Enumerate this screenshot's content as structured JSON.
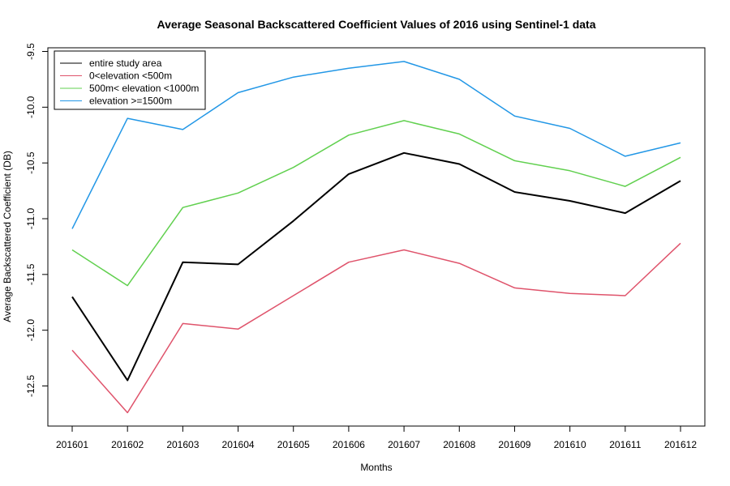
{
  "chart_data": {
    "type": "line",
    "title": "Average Seasonal Backscattered Coefficient Values of 2016 using Sentinel-1 data",
    "xlabel": "Months",
    "ylabel": "Average Backscattered Coefficient (DB)",
    "categories": [
      "201601",
      "201602",
      "201603",
      "201604",
      "201605",
      "201606",
      "201607",
      "201608",
      "201609",
      "201610",
      "201611",
      "201612"
    ],
    "ylim": [
      -12.8,
      -9.5
    ],
    "yticks": [
      -9.5,
      -10.0,
      -10.5,
      -11.0,
      -11.5,
      -12.0,
      -12.5
    ],
    "ytick_labels": [
      "-9.5",
      "-10.0",
      "-10.5",
      "-11.0",
      "-11.5",
      "-12.0",
      "-12.5"
    ],
    "legend_position": "top-left",
    "series": [
      {
        "name": "entire study area",
        "color": "#000000",
        "values": [
          -11.7,
          -12.45,
          -11.39,
          -11.41,
          -11.02,
          -10.6,
          -10.41,
          -10.51,
          -10.76,
          -10.84,
          -10.95,
          -10.66
        ]
      },
      {
        "name": "0<elevation <500m",
        "color": "#DF536B",
        "values": [
          -12.18,
          -12.74,
          -11.94,
          -11.99,
          -11.69,
          -11.39,
          -11.28,
          -11.4,
          -11.62,
          -11.67,
          -11.69,
          -11.22
        ]
      },
      {
        "name": "500m< elevation <1000m",
        "color": "#61D04F",
        "values": [
          -11.28,
          -11.6,
          -10.9,
          -10.77,
          -10.54,
          -10.25,
          -10.12,
          -10.24,
          -10.48,
          -10.57,
          -10.71,
          -10.45
        ]
      },
      {
        "name": "elevation >=1500m",
        "color": "#2297E6",
        "values": [
          -11.09,
          -10.1,
          -10.2,
          -9.87,
          -9.73,
          -9.65,
          -9.59,
          -9.75,
          -10.08,
          -10.19,
          -10.44,
          -10.32
        ]
      }
    ]
  }
}
